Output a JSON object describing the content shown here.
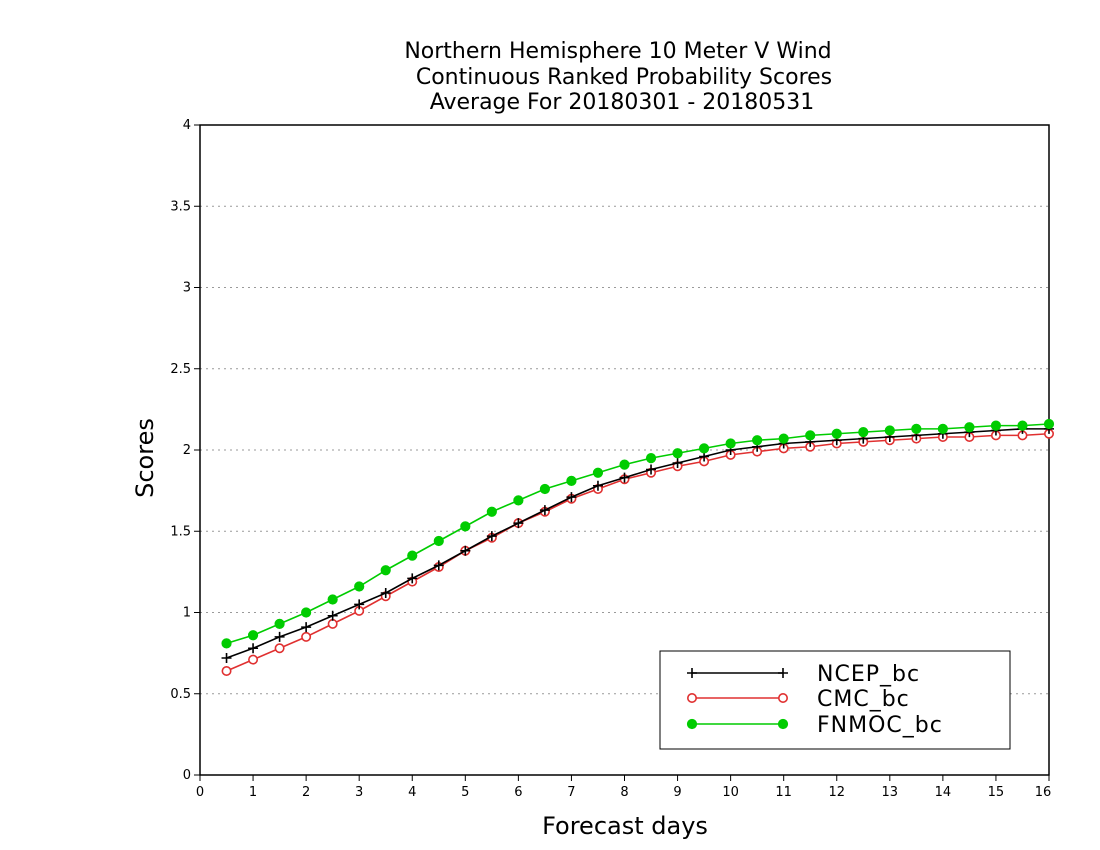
{
  "chart_data": {
    "type": "line",
    "title": [
      "Northern Hemisphere 10 Meter V Wind",
      "Continuous Ranked Probability Scores",
      "Average For 20180301 - 20180531"
    ],
    "xlabel": "Forecast days",
    "ylabel": "Scores",
    "xlim": [
      0,
      16
    ],
    "ylim": [
      0,
      4
    ],
    "x_ticks": [
      "0",
      "1",
      "2",
      "3",
      "4",
      "5",
      "6",
      "7",
      "8",
      "9",
      "10",
      "11",
      "12",
      "13",
      "14",
      "15",
      "16"
    ],
    "y_ticks": [
      "0",
      "0.5",
      "1",
      "1.5",
      "2",
      "2.5",
      "3",
      "3.5",
      "4"
    ],
    "grid": true,
    "legend_position": "bottom-right",
    "x": [
      0.5,
      1,
      1.5,
      2,
      2.5,
      3,
      3.5,
      4,
      4.5,
      5,
      5.5,
      6,
      6.5,
      7,
      7.5,
      8,
      8.5,
      9,
      9.5,
      10,
      10.5,
      11,
      11.5,
      12,
      12.5,
      13,
      13.5,
      14,
      14.5,
      15,
      15.5,
      16
    ],
    "series": [
      {
        "name": "NCEP_bc",
        "color": "#000000",
        "marker": "plus",
        "values": [
          0.72,
          0.78,
          0.85,
          0.91,
          0.98,
          1.05,
          1.12,
          1.21,
          1.29,
          1.38,
          1.47,
          1.55,
          1.63,
          1.71,
          1.78,
          1.83,
          1.88,
          1.92,
          1.96,
          2.0,
          2.02,
          2.04,
          2.05,
          2.06,
          2.07,
          2.08,
          2.09,
          2.1,
          2.11,
          2.12,
          2.13,
          2.13
        ]
      },
      {
        "name": "CMC_bc",
        "color": "#e03030",
        "marker": "open-circle",
        "values": [
          0.64,
          0.71,
          0.78,
          0.85,
          0.93,
          1.01,
          1.1,
          1.19,
          1.28,
          1.38,
          1.46,
          1.55,
          1.62,
          1.7,
          1.76,
          1.82,
          1.86,
          1.9,
          1.93,
          1.97,
          1.99,
          2.01,
          2.02,
          2.04,
          2.05,
          2.06,
          2.07,
          2.08,
          2.08,
          2.09,
          2.09,
          2.1
        ]
      },
      {
        "name": "FNMOC_bc",
        "color": "#00cc00",
        "marker": "filled-circle",
        "values": [
          0.81,
          0.86,
          0.93,
          1.0,
          1.08,
          1.16,
          1.26,
          1.35,
          1.44,
          1.53,
          1.62,
          1.69,
          1.76,
          1.81,
          1.86,
          1.91,
          1.95,
          1.98,
          2.01,
          2.04,
          2.06,
          2.07,
          2.09,
          2.1,
          2.11,
          2.12,
          2.13,
          2.13,
          2.14,
          2.15,
          2.15,
          2.16
        ]
      }
    ]
  }
}
